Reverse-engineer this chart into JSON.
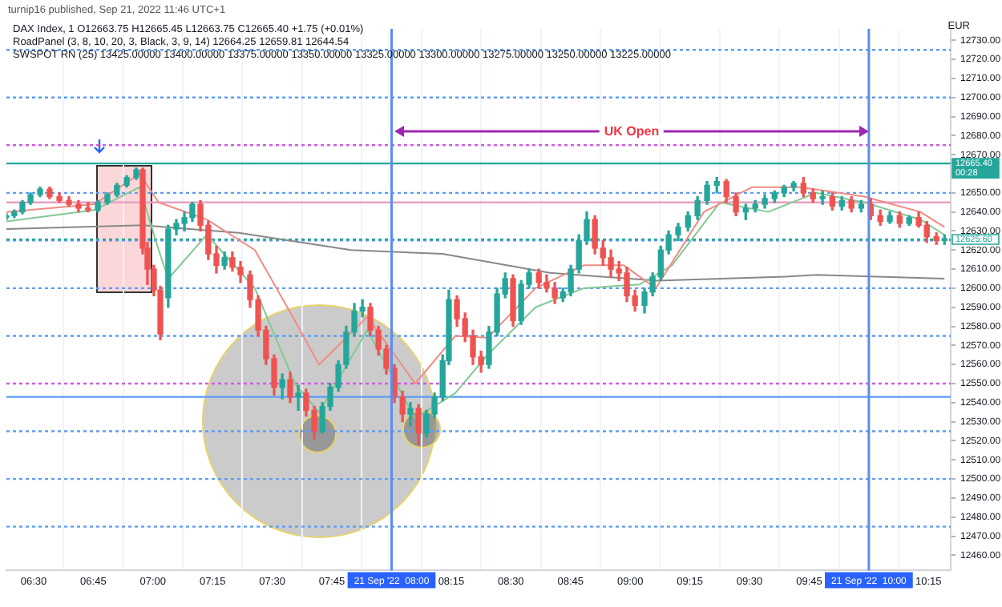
{
  "chart_data": {
    "type": "candlestick",
    "title": "turnip16 published, Sep 21, 2022 11:46 UTC+1",
    "ylabel": "EUR",
    "annotations": [
      "DAX Index, 1 O12663.75 H12665.45 L12663.75 C12665.40 +1.75 (+0.01%)",
      "RoadPanel (3, 8, 10, 20, 3, Black, 3, 9, 14) 12664.25 12659.81 12644.54",
      "SWSPOT RN (25) 13425.00000 13400.00000 13375.00000 13350.00000 13325.00000 13300.00000 13275.00000 13250.00000 13225.00000",
      "UK Open"
    ],
    "x": [
      6.386,
      6.419,
      6.453,
      6.487,
      6.527,
      6.567,
      6.608,
      6.648,
      6.688,
      6.728,
      6.769,
      6.809,
      6.849,
      6.89,
      6.93,
      6.957,
      6.977,
      7.004,
      7.031,
      7.064,
      7.098,
      7.132,
      7.165,
      7.199,
      7.232,
      7.266,
      7.3,
      7.333,
      7.367,
      7.407,
      7.441,
      7.474,
      7.508,
      7.542,
      7.575,
      7.609,
      7.642,
      7.676,
      7.71,
      7.743,
      7.777,
      7.81,
      7.844,
      7.878,
      7.911,
      7.945,
      7.978,
      8.012,
      8.046,
      8.079,
      8.113,
      8.146,
      8.18,
      8.214,
      8.24,
      8.274,
      8.308,
      8.341,
      8.375,
      8.408,
      8.442,
      8.476,
      8.509,
      8.543,
      8.576,
      8.617,
      8.65,
      8.684,
      8.718,
      8.751,
      8.785,
      8.818,
      8.852,
      8.886,
      8.919,
      8.953,
      8.986,
      9.02,
      9.06,
      9.094,
      9.128,
      9.161,
      9.201,
      9.242,
      9.282,
      9.322,
      9.363,
      9.403,
      9.443,
      9.484,
      9.524,
      9.564,
      9.605,
      9.645,
      9.685,
      9.726,
      9.766,
      9.806,
      9.847,
      9.887,
      9.927,
      9.968,
      10.008,
      10.048,
      10.088,
      10.129,
      10.169,
      10.209,
      10.243,
      10.283,
      10.317
    ],
    "ohlc": [
      [
        12637,
        12639,
        12636,
        12638
      ],
      [
        12638,
        12641,
        12637,
        12640
      ],
      [
        12640,
        12646,
        12639,
        12645
      ],
      [
        12645,
        12650,
        12644,
        12649
      ],
      [
        12649,
        12653,
        12648,
        12652
      ],
      [
        12652,
        12653,
        12647,
        12648
      ],
      [
        12648,
        12650,
        12645,
        12646
      ],
      [
        12646,
        12648,
        12643,
        12644
      ],
      [
        12644,
        12646,
        12640,
        12642
      ],
      [
        12642,
        12645,
        12640,
        12641
      ],
      [
        12641,
        12646,
        12640,
        12645
      ],
      [
        12645,
        12650,
        12644,
        12649
      ],
      [
        12649,
        12655,
        12648,
        12654
      ],
      [
        12654,
        12659,
        12653,
        12658
      ],
      [
        12658,
        12663,
        12657,
        12662
      ],
      [
        12662,
        12663,
        12618,
        12621
      ],
      [
        12621,
        12624,
        12602,
        12610
      ],
      [
        12610,
        12612,
        12596,
        12599
      ],
      [
        12599,
        12601,
        12573,
        12576
      ],
      [
        12595,
        12633,
        12590,
        12631
      ],
      [
        12631,
        12636,
        12628,
        12634
      ],
      [
        12634,
        12640,
        12630,
        12637
      ],
      [
        12637,
        12645,
        12635,
        12644
      ],
      [
        12644,
        12646,
        12630,
        12633
      ],
      [
        12633,
        12635,
        12615,
        12618
      ],
      [
        12618,
        12622,
        12608,
        12612
      ],
      [
        12612,
        12619,
        12610,
        12616
      ],
      [
        12616,
        12619,
        12609,
        12611
      ],
      [
        12611,
        12614,
        12603,
        12607
      ],
      [
        12607,
        12609,
        12590,
        12594
      ],
      [
        12594,
        12596,
        12575,
        12578
      ],
      [
        12578,
        12580,
        12560,
        12563
      ],
      [
        12563,
        12565,
        12544,
        12548
      ],
      [
        12548,
        12555,
        12542,
        12552
      ],
      [
        12552,
        12556,
        12540,
        12543
      ],
      [
        12543,
        12549,
        12536,
        12545
      ],
      [
        12545,
        12547,
        12533,
        12536
      ],
      [
        12536,
        12538,
        12521,
        12525
      ],
      [
        12525,
        12540,
        12524,
        12538
      ],
      [
        12538,
        12550,
        12536,
        12548
      ],
      [
        12548,
        12562,
        12546,
        12560
      ],
      [
        12560,
        12580,
        12558,
        12577
      ],
      [
        12577,
        12592,
        12575,
        12588
      ],
      [
        12588,
        12594,
        12585,
        12590
      ],
      [
        12590,
        12592,
        12575,
        12578
      ],
      [
        12578,
        12580,
        12565,
        12568
      ],
      [
        12568,
        12570,
        12555,
        12558
      ],
      [
        12558,
        12560,
        12540,
        12543
      ],
      [
        12543,
        12546,
        12530,
        12534
      ],
      [
        12534,
        12540,
        12528,
        12537
      ],
      [
        12537,
        12539,
        12518,
        12524
      ],
      [
        12524,
        12536,
        12522,
        12534
      ],
      [
        12534,
        12545,
        12532,
        12543
      ],
      [
        12543,
        12565,
        12541,
        12562
      ],
      [
        12562,
        12599,
        12560,
        12594
      ],
      [
        12594,
        12596,
        12580,
        12584
      ],
      [
        12584,
        12587,
        12572,
        12575
      ],
      [
        12575,
        12578,
        12560,
        12564
      ],
      [
        12564,
        12567,
        12556,
        12560
      ],
      [
        12560,
        12580,
        12558,
        12577
      ],
      [
        12577,
        12600,
        12575,
        12597
      ],
      [
        12597,
        12608,
        12595,
        12605
      ],
      [
        12605,
        12607,
        12580,
        12583
      ],
      [
        12583,
        12604,
        12581,
        12602
      ],
      [
        12602,
        12610,
        12600,
        12608
      ],
      [
        12608,
        12610,
        12600,
        12603
      ],
      [
        12603,
        12607,
        12598,
        12600
      ],
      [
        12600,
        12603,
        12592,
        12595
      ],
      [
        12595,
        12600,
        12593,
        12598
      ],
      [
        12598,
        12612,
        12596,
        12610
      ],
      [
        12610,
        12628,
        12608,
        12625
      ],
      [
        12625,
        12640,
        12623,
        12636
      ],
      [
        12636,
        12638,
        12618,
        12621
      ],
      [
        12621,
        12625,
        12612,
        12616
      ],
      [
        12616,
        12620,
        12606,
        12610
      ],
      [
        12610,
        12614,
        12604,
        12608
      ],
      [
        12608,
        12611,
        12593,
        12596
      ],
      [
        12596,
        12599,
        12588,
        12591
      ],
      [
        12591,
        12600,
        12587,
        12598
      ],
      [
        12598,
        12608,
        12596,
        12606
      ],
      [
        12606,
        12622,
        12604,
        12620
      ],
      [
        12620,
        12630,
        12618,
        12628
      ],
      [
        12628,
        12634,
        12625,
        12632
      ],
      [
        12632,
        12640,
        12630,
        12638
      ],
      [
        12638,
        12648,
        12636,
        12646
      ],
      [
        12646,
        12656,
        12644,
        12654
      ],
      [
        12654,
        12658,
        12650,
        12656
      ],
      [
        12656,
        12657,
        12645,
        12648
      ],
      [
        12648,
        12650,
        12638,
        12640
      ],
      [
        12640,
        12644,
        12636,
        12642
      ],
      [
        12642,
        12646,
        12640,
        12644
      ],
      [
        12644,
        12649,
        12642,
        12647
      ],
      [
        12647,
        12651,
        12645,
        12650
      ],
      [
        12650,
        12654,
        12648,
        12653
      ],
      [
        12653,
        12656,
        12651,
        12655
      ],
      [
        12655,
        12658,
        12648,
        12650
      ],
      [
        12650,
        12652,
        12645,
        12647
      ],
      [
        12647,
        12651,
        12644,
        12648
      ],
      [
        12648,
        12650,
        12641,
        12643
      ],
      [
        12643,
        12648,
        12641,
        12646
      ],
      [
        12646,
        12648,
        12640,
        12642
      ],
      [
        12642,
        12646,
        12640,
        12644
      ],
      [
        12644,
        12647,
        12636,
        12638
      ],
      [
        12638,
        12641,
        12633,
        12635
      ],
      [
        12635,
        12640,
        12634,
        12638
      ],
      [
        12638,
        12640,
        12632,
        12634
      ],
      [
        12634,
        12638,
        12633,
        12637
      ],
      [
        12637,
        12640,
        12632,
        12633
      ],
      [
        12633,
        12635,
        12624,
        12627
      ],
      [
        12627,
        12629,
        12623,
        12625
      ],
      [
        12625,
        12628,
        12623,
        12626
      ]
    ],
    "series": [
      {
        "type": "line",
        "color": "#f28b82",
        "x": [
          6.386,
          6.755,
          6.944,
          7.024,
          7.226,
          7.427,
          7.595,
          7.696,
          7.898,
          8.099,
          8.267,
          8.402,
          8.603,
          8.805,
          8.973,
          9.107,
          9.309,
          9.511,
          9.712,
          9.981,
          10.216,
          10.317
        ],
        "values": [
          12640,
          12644,
          12660,
          12645,
          12636,
          12620,
          12583,
          12560,
          12585,
          12550,
          12575,
          12574,
          12600,
          12612,
          12612,
          12600,
          12640,
          12653,
          12653,
          12648,
          12640,
          12632
        ]
      },
      {
        "type": "line",
        "color": "#81c995",
        "x": [
          6.386,
          6.755,
          6.944,
          7.024,
          7.064,
          7.226,
          7.427,
          7.595,
          7.696,
          7.898,
          8.099,
          8.267,
          8.402,
          8.603,
          8.805,
          9.04,
          9.175,
          9.376,
          9.578,
          9.779,
          9.981,
          10.216,
          10.317
        ],
        "values": [
          12635,
          12641,
          12653,
          12620,
          12605,
          12628,
          12600,
          12550,
          12535,
          12578,
          12532,
          12545,
          12565,
          12590,
          12600,
          12602,
          12612,
          12645,
          12640,
          12650,
          12645,
          12636,
          12628
        ]
      },
      {
        "type": "line",
        "color": "#888888",
        "x": [
          6.386,
          6.957,
          7.36,
          7.83,
          8.214,
          8.664,
          9.114,
          9.651,
          9.785,
          10.317
        ],
        "values": [
          12631,
          12633,
          12629,
          12620,
          12618,
          12608,
          12604,
          12606,
          12607,
          12605
        ]
      }
    ],
    "xlim": [
      6.386,
      10.343
    ],
    "ylim": [
      12452,
      12736
    ],
    "xticks": [
      {
        "value": 6.5,
        "label": "06:30"
      },
      {
        "value": 6.75,
        "label": "06:45"
      },
      {
        "value": 7,
        "label": "07:00"
      },
      {
        "value": 7.25,
        "label": "07:15"
      },
      {
        "value": 7.5,
        "label": "07:30"
      },
      {
        "value": 7.75,
        "label": "07:45"
      },
      {
        "value": 8,
        "label": null
      },
      {
        "value": 8.25,
        "label": "08:15"
      },
      {
        "value": 8.5,
        "label": "08:30"
      },
      {
        "value": 8.75,
        "label": "08:45"
      },
      {
        "value": 9,
        "label": "09:00"
      },
      {
        "value": 9.25,
        "label": "09:15"
      },
      {
        "value": 9.5,
        "label": "09:30"
      },
      {
        "value": 9.75,
        "label": "09:45"
      },
      {
        "value": 10,
        "label": null
      },
      {
        "value": 10.25,
        "label": "10:15"
      }
    ],
    "yticks": [
      {
        "value": 12460,
        "label": "12460.00"
      },
      {
        "value": 12470,
        "label": "12470.00"
      },
      {
        "value": 12480,
        "label": "12480.00"
      },
      {
        "value": 12490,
        "label": "12490.00"
      },
      {
        "value": 12500,
        "label": "12500.00"
      },
      {
        "value": 12510,
        "label": "12510.00"
      },
      {
        "value": 12520,
        "label": "12520.00"
      },
      {
        "value": 12530,
        "label": "12530.00"
      },
      {
        "value": 12540,
        "label": "12540.00"
      },
      {
        "value": 12550,
        "label": "12550.00"
      },
      {
        "value": 12560,
        "label": "12560.00"
      },
      {
        "value": 12570,
        "label": "12570.00"
      },
      {
        "value": 12580,
        "label": "12580.00"
      },
      {
        "value": 12590,
        "label": "12590.00"
      },
      {
        "value": 12600,
        "label": "12600.00"
      },
      {
        "value": 12610,
        "label": "12610.00"
      },
      {
        "value": 12620,
        "label": "12620.00"
      },
      {
        "value": 12630,
        "label": "12630.00"
      },
      {
        "value": 12640,
        "label": "12640.00"
      },
      {
        "value": 12650,
        "label": "12650.00"
      },
      {
        "value": 12660,
        "label": null
      },
      {
        "value": 12670,
        "label": "12670.00"
      },
      {
        "value": 12680,
        "label": "12680.00"
      },
      {
        "value": 12690,
        "label": "12690.00"
      },
      {
        "value": 12700,
        "label": "12700.00"
      },
      {
        "value": 12710,
        "label": "12710.00"
      },
      {
        "value": 12720,
        "label": "12720.00"
      },
      {
        "value": 12730,
        "label": "12730.00"
      }
    ],
    "ref_lines": [
      {
        "axis": "y",
        "value": 12725,
        "color": "#5b9cf6",
        "line_style": "dotted"
      },
      {
        "axis": "y",
        "value": 12700,
        "color": "#5b9cf6",
        "line_style": "dotted"
      },
      {
        "axis": "y",
        "value": 12675,
        "color": "#d05ce3",
        "line_style": "dotted"
      },
      {
        "axis": "y",
        "value": 12665.4,
        "label": "12665.40\n00:28",
        "color": "#26a69a",
        "line_style": "solid"
      },
      {
        "axis": "y",
        "value": 12650,
        "color": "#5b9cf6",
        "line_style": "dotted"
      },
      {
        "axis": "y",
        "value": 12645,
        "color": "#e6a0c4",
        "line_style": "solid"
      },
      {
        "axis": "y",
        "value": 12625,
        "color": "#5b9cf6",
        "line_style": "dotted"
      },
      {
        "axis": "y",
        "value": 12625.6,
        "label": "12625.60",
        "color": "#26a69a",
        "line_style": "dotted"
      },
      {
        "axis": "y",
        "value": 12600,
        "color": "#5b9cf6",
        "line_style": "dotted"
      },
      {
        "axis": "y",
        "value": 12575,
        "color": "#5b9cf6",
        "line_style": "dotted"
      },
      {
        "axis": "y",
        "value": 12550,
        "color": "#d05ce3",
        "line_style": "dotted"
      },
      {
        "axis": "y",
        "value": 12543,
        "color": "#5b9cf6",
        "line_style": "solid"
      },
      {
        "axis": "y",
        "value": 12525,
        "color": "#5b9cf6",
        "line_style": "dotted"
      },
      {
        "axis": "y",
        "value": 12500,
        "color": "#5b9cf6",
        "line_style": "dotted"
      },
      {
        "axis": "y",
        "value": 12475,
        "color": "#5b9cf6",
        "line_style": "dotted"
      },
      {
        "axis": "x",
        "value": 8,
        "label": "21 Sep '22  08:00",
        "color": "#5b8def",
        "line_style": "solid"
      },
      {
        "axis": "x",
        "value": 10,
        "label": "21 Sep '22  10:00",
        "color": "#5b8def",
        "line_style": "solid"
      }
    ],
    "grid": "x",
    "legend": false
  }
}
